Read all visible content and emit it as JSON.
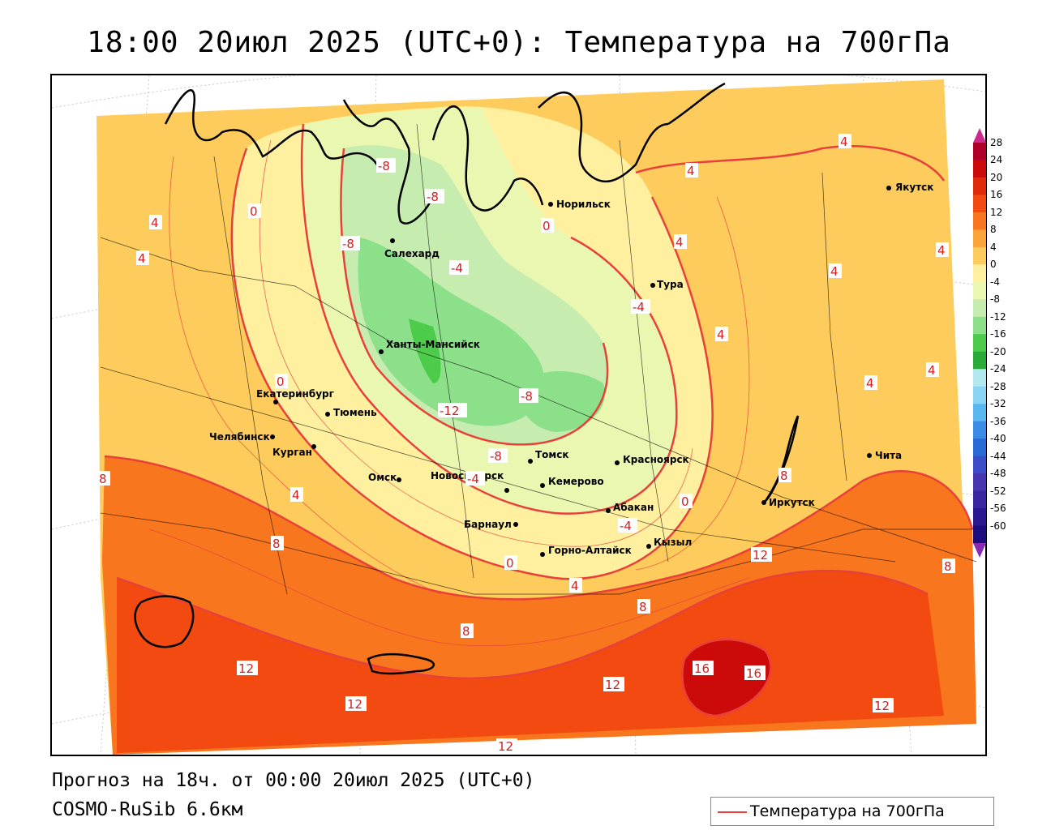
{
  "title": "18:00 20июл 2025 (UTC+0): Температура на 700гПа",
  "footer": {
    "forecast": "Прогноз на 18ч. от 00:00 20июл 2025 (UTC+0)",
    "model": "COSMO-RuSib 6.6км"
  },
  "legend": {
    "label": "Температура на 700гПа",
    "line_color": "#e8403a"
  },
  "colorbar": {
    "levels": [
      "28",
      "24",
      "20",
      "16",
      "12",
      "8",
      "4",
      "0",
      "-4",
      "-8",
      "-12",
      "-16",
      "-20",
      "-24",
      "-28",
      "-32",
      "-36",
      "-40",
      "-44",
      "-48",
      "-52",
      "-56",
      "-60"
    ],
    "colors": [
      "#b0002a",
      "#cc0a0a",
      "#e02a0a",
      "#f24a10",
      "#f8761e",
      "#fca43a",
      "#fdcc5c",
      "#fff0a0",
      "#eaf7b0",
      "#c6ecb0",
      "#8ce08a",
      "#4ccc4a",
      "#2aaa36",
      "#b4e8f0",
      "#8ad4f4",
      "#5ab8f0",
      "#3a8ce6",
      "#2a6ad8",
      "#3a4cc8",
      "#4836b0",
      "#3a26a0",
      "#2a1890",
      "#1c0c80"
    ],
    "top_arrow_color": "#cc2a8c",
    "bottom_arrow_color": "#8a2ab0"
  },
  "cities": [
    {
      "name": "Норильск"
    },
    {
      "name": "Якутск"
    },
    {
      "name": "Салехард"
    },
    {
      "name": "Тура"
    },
    {
      "name": "Ханты-Мансийск"
    },
    {
      "name": "Екатеринбург"
    },
    {
      "name": "Тюмень"
    },
    {
      "name": "Челябинск"
    },
    {
      "name": "Курган"
    },
    {
      "name": "Омск"
    },
    {
      "name": "Новосибирск"
    },
    {
      "name": "Томск"
    },
    {
      "name": "Кемерово"
    },
    {
      "name": "Красноярск"
    },
    {
      "name": "Барнаул"
    },
    {
      "name": "Абакан"
    },
    {
      "name": "Горно-Алтайск"
    },
    {
      "name": "Кызыл"
    },
    {
      "name": "Иркутск"
    },
    {
      "name": "Чита"
    }
  ],
  "isotherm_labels": [
    "-8",
    "-8",
    "-8",
    "-4",
    "-4",
    "-12",
    "-8",
    "-8",
    "-4",
    "-4",
    "0",
    "0",
    "0",
    "0",
    "0",
    "4",
    "4",
    "4",
    "4",
    "4",
    "4",
    "4",
    "4",
    "4",
    "4",
    "4",
    "4",
    "8",
    "8",
    "8",
    "8",
    "8",
    "8",
    "12",
    "12",
    "12",
    "12",
    "12",
    "12",
    "16",
    "16"
  ]
}
